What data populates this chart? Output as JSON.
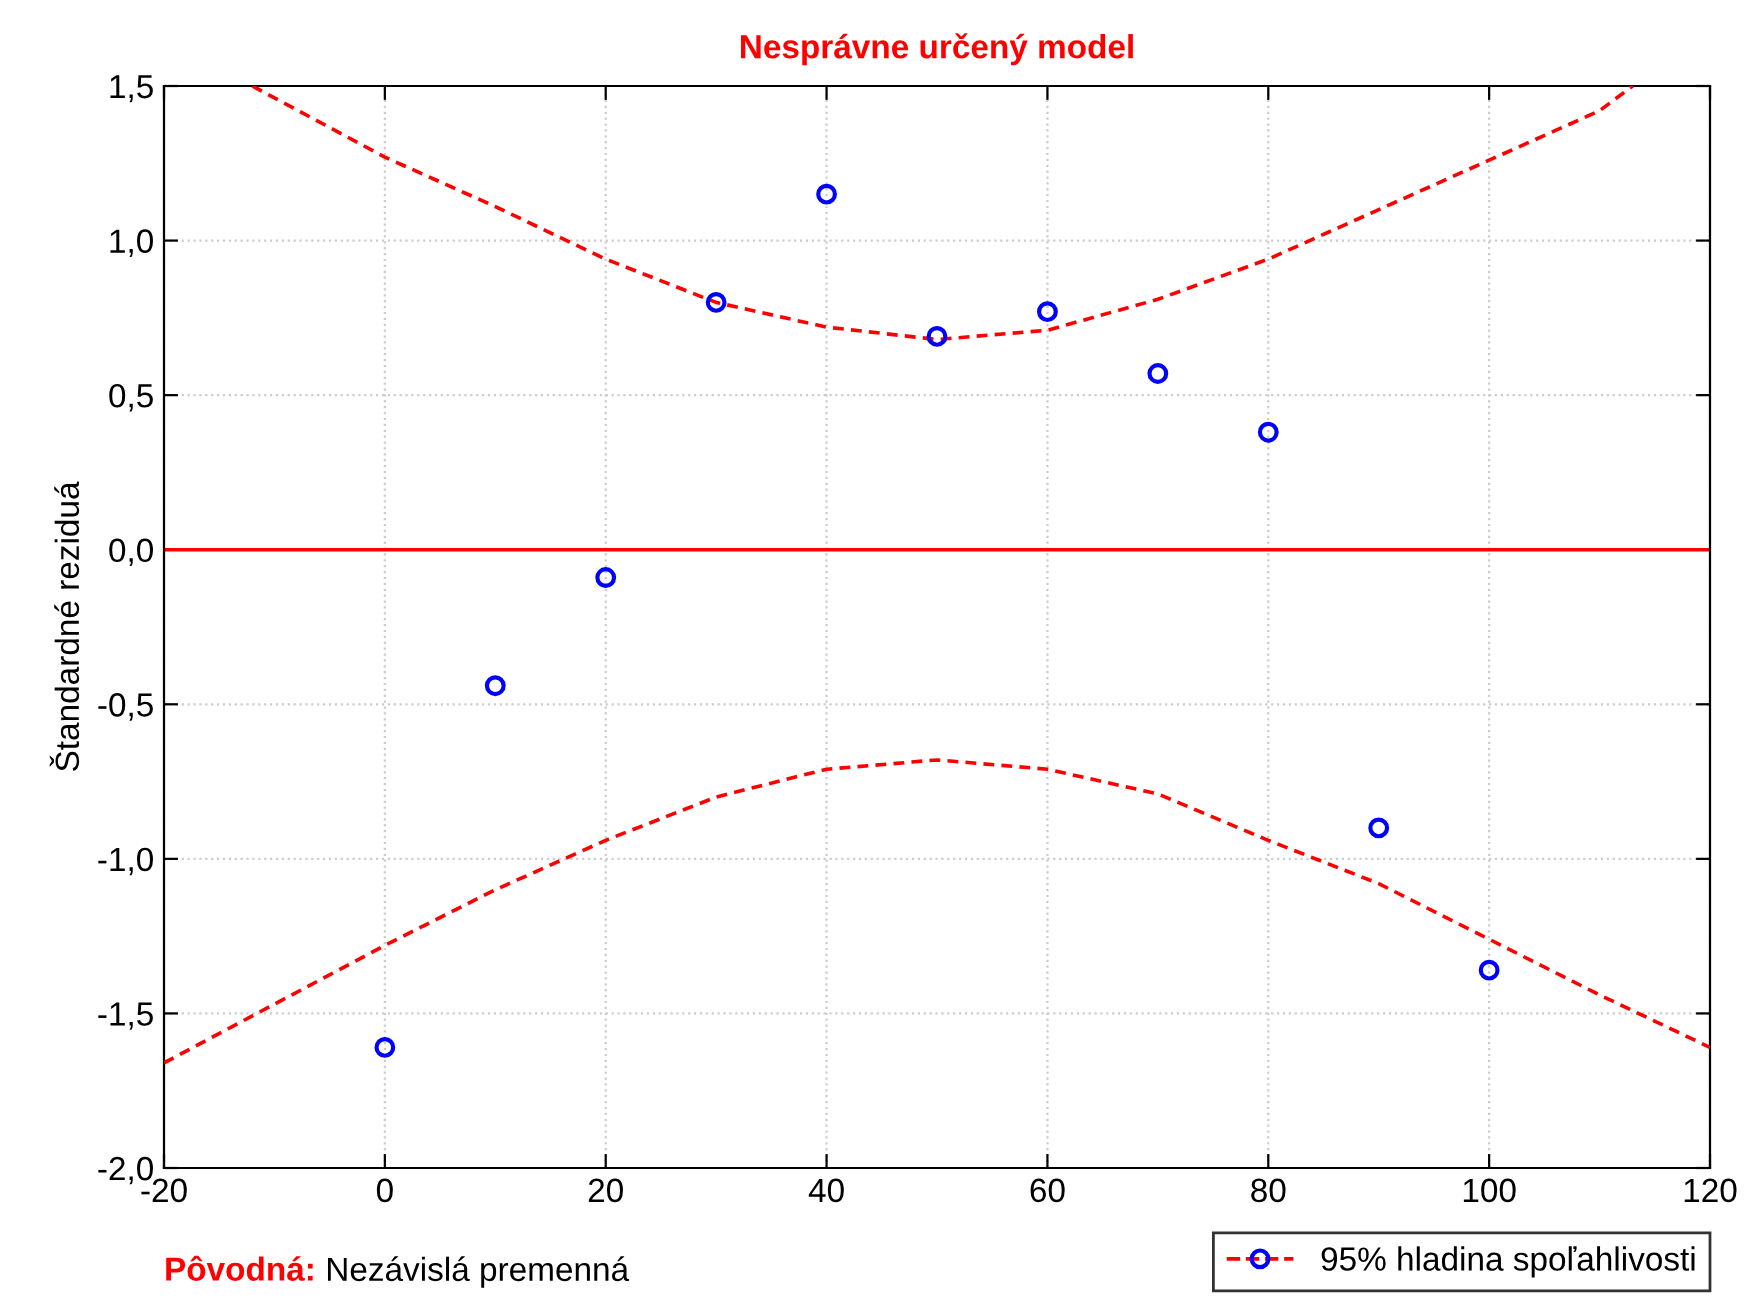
{
  "chart_data": {
    "type": "scatter",
    "title": "Nesprávne určený model",
    "ylabel": "Štandardné reziduá",
    "annotations": [
      "Pôvodná:",
      "Nezávislá premenná"
    ],
    "xlim": [
      -20,
      120
    ],
    "xticks": [
      -20,
      0,
      20,
      40,
      60,
      80,
      100,
      120
    ],
    "ylim": [
      -2.0,
      1.5
    ],
    "yticks": [
      {
        "value": -2.0,
        "label": "-2,0"
      },
      {
        "value": -1.5,
        "label": "-1,5"
      },
      {
        "value": -1.0,
        "label": "-1,0"
      },
      {
        "value": -0.5,
        "label": "-0,5"
      },
      {
        "value": 0.0,
        "label": "0,0"
      },
      {
        "value": 0.5,
        "label": "0,5"
      },
      {
        "value": 1.0,
        "label": "1,0"
      },
      {
        "value": 1.5,
        "label": "1,5"
      }
    ],
    "grid": true,
    "legend": "bottom right",
    "ref_lines": [
      {
        "axis": "y",
        "value": 0,
        "color": "#ff0000",
        "line_style": "solid"
      }
    ],
    "series": [
      {
        "color": "#0000ff",
        "marker": "circle",
        "x": [
          0,
          10,
          20,
          30,
          40,
          50,
          60,
          70,
          80,
          90,
          100
        ],
        "values": [
          -1.61,
          -0.44,
          -0.09,
          0.8,
          1.15,
          0.69,
          0.77,
          0.57,
          0.38,
          -0.9,
          -1.36
        ]
      },
      {
        "type": "line",
        "name": "95% hladina spoľahlivosti",
        "color": "#ff0000",
        "line_style": "dashed",
        "x": [
          -12,
          0,
          10,
          20,
          30,
          40,
          50,
          60,
          70,
          80,
          90,
          100,
          110,
          113
        ],
        "values": [
          1.5,
          1.27,
          1.11,
          0.94,
          0.8,
          0.72,
          0.68,
          0.71,
          0.81,
          0.94,
          1.1,
          1.26,
          1.42,
          1.5
        ]
      },
      {
        "type": "line",
        "color": "#ff0000",
        "line_style": "dashed",
        "x": [
          -20,
          0,
          10,
          20,
          30,
          40,
          50,
          60,
          70,
          80,
          90,
          100,
          110,
          120
        ],
        "values": [
          -1.66,
          -1.28,
          -1.1,
          -0.94,
          -0.8,
          -0.71,
          -0.68,
          -0.71,
          -0.79,
          -0.94,
          -1.08,
          -1.26,
          -1.44,
          -1.61
        ]
      }
    ]
  }
}
